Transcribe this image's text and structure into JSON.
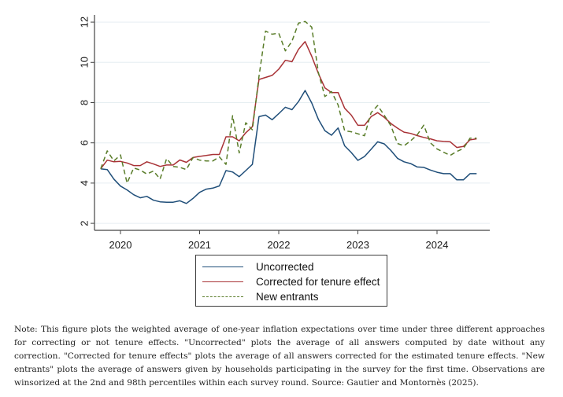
{
  "chart_data": {
    "type": "line",
    "title": "",
    "xlabel": "",
    "ylabel": "",
    "x_start": {
      "year": 2019,
      "month": 10
    },
    "x_step": "monthly",
    "xlim": [
      2019.6,
      2024.7
    ],
    "ylim": [
      1.6,
      12.4
    ],
    "x_ticks": [
      2020,
      2021,
      2022,
      2023,
      2024
    ],
    "x_tick_labels": [
      "2020",
      "2021",
      "2022",
      "2023",
      "2024"
    ],
    "y_ticks": [
      2,
      4,
      6,
      8,
      10,
      12
    ],
    "y_tick_labels": [
      "2",
      "4",
      "6",
      "8",
      "10",
      "12"
    ],
    "grid": "horizontal",
    "legend_position": "bottom-center",
    "series": [
      {
        "name": "Uncorrected",
        "color": "#1f4e79",
        "style": "solid",
        "values": [
          4.71,
          4.67,
          4.2,
          3.85,
          3.66,
          3.42,
          3.27,
          3.34,
          3.15,
          3.07,
          3.05,
          3.05,
          3.12,
          2.99,
          3.24,
          3.54,
          3.7,
          3.75,
          3.86,
          4.62,
          4.55,
          4.32,
          4.62,
          4.93,
          7.3,
          7.38,
          7.15,
          7.45,
          7.77,
          7.65,
          8.05,
          8.6,
          7.98,
          7.17,
          6.6,
          6.38,
          6.74,
          5.85,
          5.52,
          5.13,
          5.32,
          5.68,
          6.05,
          5.95,
          5.62,
          5.23,
          5.06,
          4.97,
          4.8,
          4.78,
          4.65,
          4.54,
          4.47,
          4.47,
          4.16,
          4.16,
          4.47,
          4.47
        ]
      },
      {
        "name": "Corrected for tenure effect",
        "color": "#a83236",
        "style": "solid",
        "values": [
          4.71,
          5.14,
          5.06,
          5.08,
          5.0,
          4.87,
          4.87,
          5.06,
          4.95,
          4.83,
          4.9,
          4.9,
          5.15,
          5.03,
          5.27,
          5.33,
          5.37,
          5.42,
          5.42,
          6.3,
          6.3,
          6.1,
          6.5,
          6.8,
          9.15,
          9.25,
          9.35,
          9.66,
          10.1,
          10.03,
          10.65,
          11.03,
          10.3,
          9.45,
          8.73,
          8.5,
          8.5,
          7.72,
          7.38,
          6.87,
          6.87,
          7.3,
          7.5,
          7.27,
          6.96,
          6.73,
          6.53,
          6.47,
          6.36,
          6.27,
          6.2,
          6.1,
          6.07,
          6.05,
          5.77,
          5.82,
          6.15,
          6.2
        ]
      },
      {
        "name": "New entrants",
        "color": "#5a7d2a",
        "style": "dashed",
        "values": [
          4.71,
          5.6,
          5.1,
          5.4,
          4.0,
          4.75,
          4.65,
          4.45,
          4.6,
          4.2,
          5.22,
          4.83,
          4.78,
          4.67,
          5.27,
          5.14,
          5.1,
          5.1,
          5.3,
          4.93,
          7.35,
          5.5,
          7.0,
          6.65,
          9.3,
          11.55,
          11.4,
          11.45,
          10.57,
          11.05,
          11.95,
          12.03,
          11.75,
          9.5,
          8.3,
          8.55,
          7.88,
          6.6,
          6.55,
          6.45,
          6.35,
          7.5,
          7.85,
          7.37,
          6.85,
          5.97,
          5.85,
          6.1,
          6.4,
          6.88,
          6.0,
          5.7,
          5.53,
          5.38,
          5.57,
          5.72,
          6.23,
          6.23
        ]
      }
    ]
  },
  "legend": {
    "items": [
      {
        "label": "Uncorrected",
        "color": "#1f4e79",
        "style": "solid"
      },
      {
        "label": "Corrected for tenure effect",
        "color": "#a83236",
        "style": "solid"
      },
      {
        "label": "New entrants",
        "color": "#5a7d2a",
        "style": "dashed"
      }
    ]
  },
  "note": "Note: This figure plots the weighted average of one-year inflation expectations over time under three different approaches for correcting or not tenure effects. \"Uncorrected\" plots the average of all answers computed by date without any correction. \"Corrected for tenure effects\" plots the average of all answers corrected for the estimated tenure effects. \"New entrants\" plots the average of answers given by households participating in the survey for the first time. Observations are winsorized at the 2nd and 98th percentiles within each survey round. Source: Gautier and Montornès (2025)."
}
